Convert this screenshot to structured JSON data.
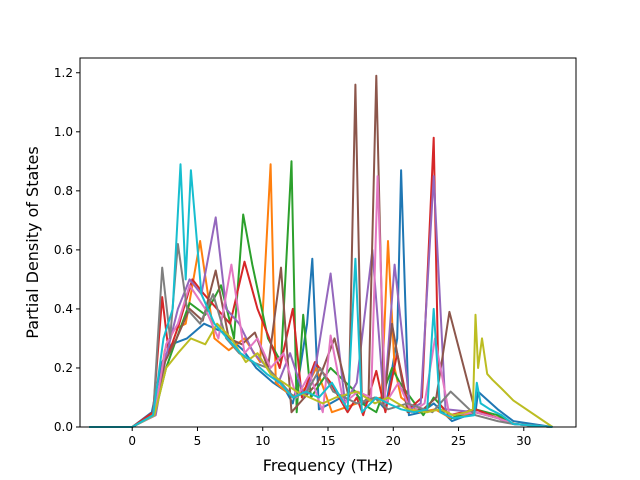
{
  "chart_data": {
    "type": "line",
    "title": "",
    "xlabel": "Frequency (THz)",
    "ylabel": "Partial Density of States",
    "xlim": [
      -4.0,
      34.0
    ],
    "ylim": [
      0.0,
      1.25
    ],
    "xticks": [
      0,
      5,
      10,
      15,
      20,
      25,
      30
    ],
    "xtick_labels": [
      "0",
      "5",
      "10",
      "15",
      "20",
      "25",
      "30"
    ],
    "yticks": [
      0.0,
      0.2,
      0.4,
      0.6,
      0.8,
      1.0,
      1.2
    ],
    "ytick_labels": [
      "0.0",
      "0.2",
      "0.4",
      "0.6",
      "0.8",
      "1.0",
      "1.2"
    ],
    "grid": false,
    "legend": "none",
    "series": [
      {
        "color": "#1f77b4",
        "x": [
          -3.3,
          0,
          1.5,
          2.3,
          3,
          4.2,
          5.5,
          7,
          8.5,
          9.5,
          10.8,
          11.8,
          12.3,
          12.8,
          13.4,
          13.8,
          14.3,
          15.2,
          16,
          17,
          17.8,
          18.6,
          19.4,
          20.3,
          20.6,
          21.2,
          22.2,
          23.1,
          23.8,
          24.5,
          26.3,
          26.5,
          27,
          28,
          29.2,
          32.2
        ],
        "y": [
          0,
          0,
          0.05,
          0.22,
          0.28,
          0.3,
          0.35,
          0.32,
          0.26,
          0.2,
          0.15,
          0.12,
          0.08,
          0.18,
          0.35,
          0.57,
          0.06,
          0.08,
          0.1,
          0.12,
          0.08,
          0.1,
          0.06,
          0.3,
          0.87,
          0.04,
          0.05,
          0.08,
          0.05,
          0.02,
          0.05,
          0.12,
          0.1,
          0.06,
          0.02,
          0
        ]
      },
      {
        "color": "#ff7f0e",
        "x": [
          -3.3,
          0,
          1.8,
          2.5,
          3.2,
          4.1,
          5.2,
          6.3,
          7.4,
          8.6,
          9.8,
          10.6,
          11,
          11.8,
          12.6,
          13.4,
          14.1,
          15.3,
          17.2,
          19.1,
          19.6,
          20.1,
          20.6,
          22,
          23.2,
          24.4,
          26.2,
          28.2,
          29.3,
          32.2
        ],
        "y": [
          0,
          0,
          0.05,
          0.26,
          0.33,
          0.35,
          0.63,
          0.3,
          0.26,
          0.3,
          0.22,
          0.89,
          0.15,
          0.12,
          0.1,
          0.14,
          0.2,
          0.05,
          0.08,
          0.1,
          0.63,
          0.2,
          0.1,
          0.05,
          0.06,
          0.03,
          0.05,
          0.03,
          0.01,
          0
        ]
      },
      {
        "color": "#2ca02c",
        "x": [
          -3.3,
          0,
          1.7,
          2.6,
          3.4,
          4.4,
          5.6,
          6.8,
          7.8,
          8.5,
          9.2,
          10.4,
          11.4,
          12.2,
          12.6,
          13.1,
          13.7,
          15.2,
          17.1,
          17.6,
          18.7,
          19.9,
          20.5,
          22.3,
          23.1,
          24.5,
          26.3,
          28,
          29.2,
          32.2
        ],
        "y": [
          0,
          0,
          0.04,
          0.2,
          0.3,
          0.42,
          0.38,
          0.48,
          0.3,
          0.72,
          0.55,
          0.3,
          0.22,
          0.9,
          0.05,
          0.38,
          0.1,
          0.2,
          0.12,
          0.08,
          0.05,
          0.2,
          0.15,
          0.04,
          0.1,
          0.03,
          0.06,
          0.04,
          0.01,
          0
        ]
      },
      {
        "color": "#d62728",
        "x": [
          -3.3,
          0,
          1.6,
          2.3,
          2.8,
          3.6,
          4.6,
          5.5,
          6.5,
          7.5,
          8.6,
          9.6,
          10.5,
          11.3,
          12.3,
          13,
          14,
          15.2,
          16.5,
          17.2,
          17.7,
          18.7,
          19.4,
          20.3,
          21.2,
          22.2,
          23.1,
          23.5,
          24.3,
          26.3,
          28,
          29.2,
          32.2
        ],
        "y": [
          0,
          0,
          0.05,
          0.44,
          0.25,
          0.35,
          0.5,
          0.45,
          0.4,
          0.35,
          0.56,
          0.4,
          0.3,
          0.2,
          0.4,
          0.1,
          0.22,
          0.15,
          0.05,
          0.1,
          0.04,
          0.19,
          0.05,
          0.25,
          0.06,
          0.1,
          0.98,
          0.08,
          0.04,
          0.06,
          0.03,
          0.01,
          0
        ]
      },
      {
        "color": "#9467bd",
        "x": [
          -3.3,
          0,
          1.8,
          2.6,
          3.5,
          4.4,
          5.3,
          6.4,
          7.2,
          8.2,
          9.3,
          10.4,
          11.2,
          12.1,
          13.2,
          14.1,
          15.2,
          16.3,
          17.2,
          18.4,
          19.3,
          20.1,
          21.3,
          22.1,
          23.1,
          24,
          26.3,
          28,
          29.2,
          32.2
        ],
        "y": [
          0,
          0,
          0.04,
          0.24,
          0.4,
          0.5,
          0.45,
          0.71,
          0.4,
          0.35,
          0.25,
          0.2,
          0.15,
          0.25,
          0.1,
          0.22,
          0.52,
          0.08,
          0.15,
          0.6,
          0.08,
          0.55,
          0.06,
          0.08,
          0.85,
          0.06,
          0.05,
          0.03,
          0.01,
          0
        ]
      },
      {
        "color": "#8c564b",
        "x": [
          -3.3,
          0,
          1.6,
          2.5,
          3.4,
          4.4,
          5.4,
          6.4,
          7.4,
          8.4,
          9.4,
          10.4,
          11.4,
          12.2,
          13.2,
          14.2,
          15.5,
          16.6,
          17.1,
          17.6,
          18.1,
          18.7,
          19.3,
          19.9,
          21.1,
          22.3,
          23.3,
          24.3,
          26.3,
          28,
          29.2,
          32.2
        ],
        "y": [
          0,
          0,
          0.04,
          0.22,
          0.3,
          0.4,
          0.36,
          0.53,
          0.3,
          0.28,
          0.32,
          0.2,
          0.54,
          0.05,
          0.1,
          0.15,
          0.3,
          0.1,
          1.16,
          0.08,
          0.1,
          1.19,
          0.08,
          0.35,
          0.05,
          0.06,
          0.1,
          0.39,
          0.05,
          0.03,
          0.01,
          0
        ]
      },
      {
        "color": "#e377c2",
        "x": [
          -3.3,
          0,
          1.7,
          2.6,
          3.5,
          4.4,
          5.6,
          6.6,
          7.6,
          8.6,
          9.6,
          10.6,
          11.6,
          12.6,
          13.6,
          14.6,
          15.2,
          16.2,
          17.3,
          18.3,
          18.8,
          19.4,
          20.4,
          21.4,
          22.4,
          23.2,
          24.3,
          26.3,
          28,
          29.2,
          32.2
        ],
        "y": [
          0,
          0,
          0.04,
          0.28,
          0.35,
          0.48,
          0.4,
          0.3,
          0.55,
          0.25,
          0.3,
          0.2,
          0.25,
          0.1,
          0.18,
          0.05,
          0.31,
          0.08,
          0.12,
          0.1,
          0.85,
          0.08,
          0.15,
          0.05,
          0.08,
          0.3,
          0.04,
          0.05,
          0.03,
          0.01,
          0
        ]
      },
      {
        "color": "#7f7f7f",
        "x": [
          -3.3,
          0,
          1.6,
          2.3,
          2.9,
          3.5,
          4.2,
          5.2,
          6.2,
          7.2,
          8.2,
          9.2,
          10.4,
          11.4,
          12.4,
          13.4,
          14.4,
          15.4,
          17.2,
          18.6,
          19.6,
          21.1,
          23,
          24.4,
          26.3,
          28,
          29.2,
          32.2
        ],
        "y": [
          0,
          0,
          0.04,
          0.54,
          0.3,
          0.62,
          0.4,
          0.35,
          0.45,
          0.3,
          0.25,
          0.22,
          0.2,
          0.15,
          0.1,
          0.12,
          0.2,
          0.12,
          0.08,
          0.1,
          0.06,
          0.08,
          0.05,
          0.12,
          0.04,
          0.02,
          0.01,
          0
        ]
      },
      {
        "color": "#bcbd22",
        "x": [
          -3.3,
          0,
          1.7,
          2.6,
          3.5,
          4.5,
          5.6,
          6.5,
          7.6,
          8.7,
          9.6,
          10.6,
          11.6,
          12.6,
          13.6,
          14.6,
          15.6,
          17.2,
          18.6,
          19.6,
          21.1,
          22.6,
          23.6,
          24.6,
          25.6,
          26.1,
          26.3,
          26.5,
          26.8,
          27.2,
          27.6,
          28.3,
          29.2,
          32.2
        ],
        "y": [
          0,
          0,
          0.04,
          0.2,
          0.25,
          0.3,
          0.28,
          0.35,
          0.3,
          0.22,
          0.25,
          0.18,
          0.15,
          0.12,
          0.1,
          0.08,
          0.1,
          0.12,
          0.08,
          0.1,
          0.06,
          0.05,
          0.06,
          0.04,
          0.05,
          0.06,
          0.38,
          0.2,
          0.3,
          0.18,
          0.16,
          0.13,
          0.09,
          0
        ]
      },
      {
        "color": "#17becf",
        "x": [
          -3.3,
          0,
          1.6,
          2.4,
          3.1,
          3.7,
          4.1,
          4.5,
          5.3,
          6.3,
          7.3,
          8.3,
          9.3,
          10.3,
          11.3,
          12.3,
          13.3,
          14.3,
          15.3,
          16.5,
          17.1,
          17.6,
          18.7,
          19.6,
          20.6,
          21.6,
          22.6,
          23.1,
          23.6,
          24.6,
          26.2,
          26.4,
          26.7,
          27.4,
          28.3,
          29.2,
          32.2
        ],
        "y": [
          0,
          0,
          0.04,
          0.3,
          0.4,
          0.89,
          0.5,
          0.87,
          0.45,
          0.35,
          0.3,
          0.25,
          0.22,
          0.18,
          0.15,
          0.1,
          0.12,
          0.1,
          0.15,
          0.06,
          0.57,
          0.05,
          0.1,
          0.08,
          0.06,
          0.05,
          0.06,
          0.4,
          0.05,
          0.03,
          0.04,
          0.15,
          0.08,
          0.06,
          0.04,
          0.01,
          0
        ]
      }
    ]
  }
}
